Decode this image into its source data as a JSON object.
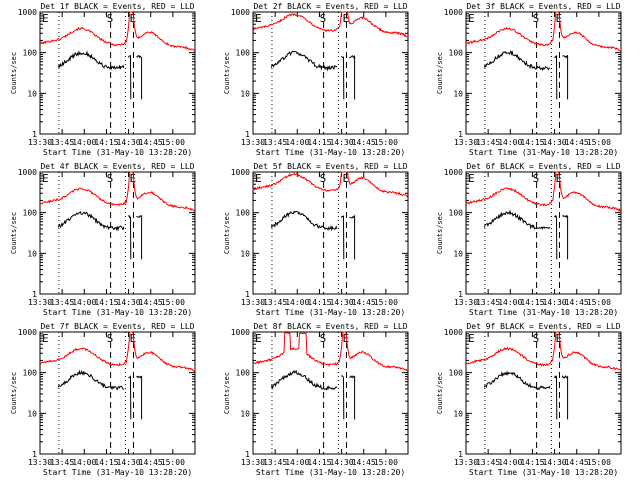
{
  "chart_data": [
    {
      "type": "line",
      "title": "Det 1f BLACK = Events, RED = LLD",
      "xlabel": "Start Time (31-May-10 13:28:20)",
      "ylabel": "Counts/sec"
    },
    {
      "type": "line",
      "title": "Det 2f BLACK = Events, RED = LLD",
      "xlabel": "Start Time (31-May-10 13:28:20)",
      "ylabel": "Counts/sec"
    },
    {
      "type": "line",
      "title": "Det 3f BLACK = Events, RED = LLD",
      "xlabel": "Start Time (31-May-10 13:28:20)",
      "ylabel": "Counts/sec"
    },
    {
      "type": "line",
      "title": "Det 4f BLACK = Events, RED = LLD",
      "xlabel": "Start Time (31-May-10 13:28:20)",
      "ylabel": "Counts/sec"
    },
    {
      "type": "line",
      "title": "Det 5f BLACK = Events, RED = LLD",
      "xlabel": "Start Time (31-May-10 13:28:20)",
      "ylabel": "Counts/sec"
    },
    {
      "type": "line",
      "title": "Det 6f BLACK = Events, RED = LLD",
      "xlabel": "Start Time (31-May-10 13:28:20)",
      "ylabel": "Counts/sec"
    },
    {
      "type": "line",
      "title": "Det 7f BLACK = Events, RED = LLD",
      "xlabel": "Start Time (31-May-10 13:28:20)",
      "ylabel": "Counts/sec"
    },
    {
      "type": "line",
      "title": "Det 8f BLACK = Events, RED = LLD",
      "xlabel": "Start Time (31-May-10 13:28:20)",
      "ylabel": "Counts/sec"
    },
    {
      "type": "line",
      "title": "Det 9f BLACK = Events, RED = LLD",
      "xlabel": "Start Time (31-May-10 13:28:20)",
      "ylabel": "Counts/sec"
    }
  ],
  "shared": {
    "x_ticks": [
      "13:30",
      "13:45",
      "14:00",
      "14:15",
      "14:30",
      "14:45",
      "15:00"
    ],
    "x_tick_minutes": [
      1.67,
      16.67,
      31.67,
      46.67,
      61.67,
      76.67,
      91.67
    ],
    "xlim_minutes": [
      1.67,
      106.67
    ],
    "y_ticks": [
      "1",
      "10",
      "100",
      "1000"
    ],
    "y_tick_values": [
      1,
      10,
      100,
      1000
    ],
    "ylim": [
      1,
      1000
    ],
    "yscale": "log",
    "markers": [
      {
        "label": "E",
        "x_minutes": 1.67,
        "line": "none"
      },
      {
        "label": "S",
        "x_minutes": 49.5,
        "line": "dashed"
      },
      {
        "label": "E",
        "x_minutes": 65.0,
        "line": "dashed"
      },
      {
        "label": "",
        "x_minutes": 14.5,
        "line": "dotted"
      },
      {
        "label": "",
        "x_minutes": 59.5,
        "line": "dotted"
      }
    ],
    "colors": {
      "red": "#ff0000",
      "black": "#000000",
      "axes": "#000000"
    }
  }
}
